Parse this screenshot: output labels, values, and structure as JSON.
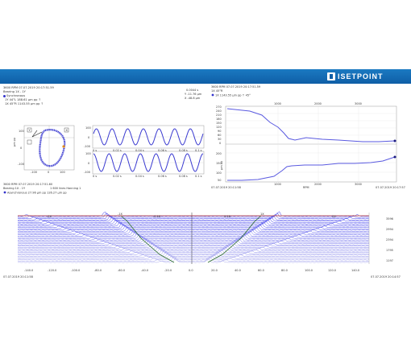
{
  "brand": {
    "name": "ISETPOINT"
  },
  "orbit_panel": {
    "header": "3600 RPM   07.07.2019 20:17:51.59",
    "bearing": "Bearing 1X - 1Y",
    "legend": "Synchronous",
    "row1": "1Y    44°L      188.61 µm pp ↑",
    "row2": "1X    45°R      1143.55 µm pp ↑",
    "y_marker": "Y",
    "x_marker": "X",
    "ylabel": "µm pp",
    "yticks": [
      "100",
      "0",
      "-100"
    ],
    "xticks": [
      "-100",
      "0",
      "100"
    ]
  },
  "cursor_readout": {
    "line1": "0.0044 s",
    "line2": "Y  -11.76 µm",
    "line3": "X  -48.8 µm"
  },
  "waveform_panel": {
    "top_yticks": [
      "100",
      "0",
      "-100"
    ],
    "bottom_yticks": [
      "100",
      "0",
      "-100"
    ],
    "xticks": [
      "0 s",
      "0.02 s",
      "0.04 s",
      "0.06 s",
      "0.08 s",
      "0.1 s"
    ]
  },
  "bode_panel": {
    "header": "3600 RPM   07.07.2019 20:17:51.59",
    "sensor": "1X 45°R",
    "legend": "1X  1143.55 µm pp ↑ 45°",
    "phase_yticks": [
      "270",
      "240",
      "210",
      "180",
      "150",
      "120",
      "90",
      "60",
      "30",
      "0"
    ],
    "amp_yticks": [
      "200",
      "150",
      "100",
      "50"
    ],
    "top_xticks": [
      "1000",
      "2000",
      "3000"
    ],
    "bottom_xticks": [
      "1000",
      "2000",
      "3000"
    ],
    "xlabel": "RPM",
    "ylabel": "µm pp",
    "start_time": "07.07.2019 20:11:58",
    "end_time": "07.07.2019 20:17:57"
  },
  "cascade_panel": {
    "header": "3600 RPM   07.07.2019 20:17:51.60",
    "bearing": "Bearing 1X - 1Y",
    "info": "1 600 lines   Hanning 1",
    "legend": "Asynchronous  27.96 µm pp  126.27 µm pp",
    "rpm_ticks": [
      "3596",
      "2994",
      "2394",
      "1795",
      "1197"
    ],
    "xticks": [
      "-140.0",
      "-120.0",
      "-100.0",
      "-80.0",
      "-60.0",
      "-40.0",
      "-20.0",
      "0.0",
      "20.0",
      "40.0",
      "60.0",
      "80.0",
      "100.0",
      "120.0",
      "140.0"
    ],
    "order_labels": [
      "-1X",
      "-0.16",
      "0.16",
      "1X",
      "-2X",
      "2X"
    ],
    "start_time": "07.07.2019 20:11:58",
    "end_time": "07.07.2019 20:14:57"
  }
}
